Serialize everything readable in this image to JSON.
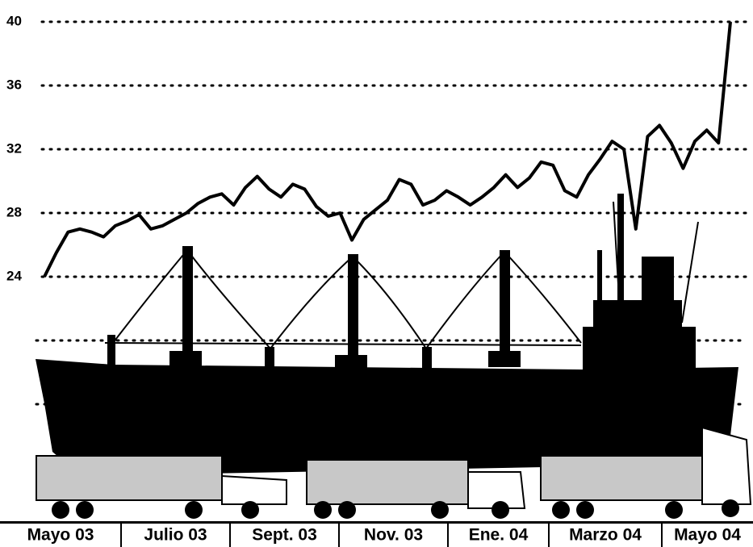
{
  "chart_data": {
    "type": "line",
    "x_labels": [
      "Mayo 03",
      "Julio 03",
      "Sept. 03",
      "Nov. 03",
      "Ene. 04",
      "Marzo 04",
      "Mayo 04"
    ],
    "values": [
      24,
      25.5,
      26.8,
      27.0,
      26.8,
      26.5,
      27.2,
      27.5,
      27.9,
      27.0,
      27.2,
      27.6,
      28.0,
      28.6,
      29.0,
      29.2,
      28.5,
      29.6,
      30.3,
      29.5,
      29.0,
      29.8,
      29.5,
      28.4,
      27.8,
      28.0,
      26.3,
      27.6,
      28.2,
      28.8,
      30.1,
      29.8,
      28.5,
      28.8,
      29.4,
      29.0,
      28.5,
      29.0,
      29.6,
      30.4,
      29.6,
      30.2,
      31.2,
      31.0,
      29.4,
      29.0,
      30.4,
      31.4,
      32.5,
      32.0,
      27.0,
      32.8,
      33.5,
      32.4,
      30.8,
      32.5,
      33.2,
      32.4,
      40.0
    ],
    "color": "#000000",
    "ylim": [
      16,
      40
    ],
    "yticks": [
      24,
      28,
      32,
      36,
      40
    ],
    "grid": true
  }
}
